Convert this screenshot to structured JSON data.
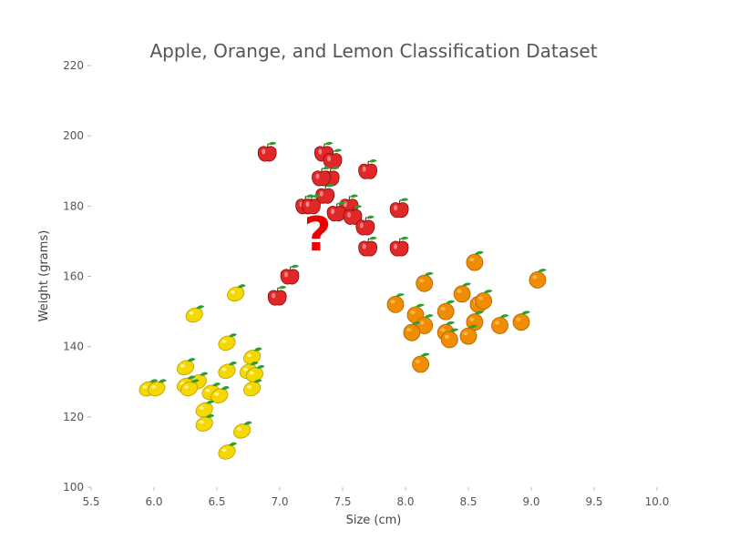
{
  "chart_data": {
    "type": "scatter",
    "title": "Apple, Orange, and Lemon Classification Dataset",
    "xlabel": "Size (cm)",
    "ylabel": "Weight (grams)",
    "xlim": [
      5.5,
      10.0
    ],
    "ylim": [
      100,
      220
    ],
    "xticks": [
      "5.5",
      "6.0",
      "6.5",
      "7.0",
      "7.5",
      "8.0",
      "8.5",
      "9.0",
      "9.5",
      "10.0"
    ],
    "yticks": [
      "100",
      "120",
      "140",
      "160",
      "180",
      "200",
      "220"
    ],
    "grid": false,
    "legend": "none",
    "annotation": "?",
    "annotation_point": {
      "x": 7.3,
      "y": 172
    },
    "colors": {
      "apple": "#e02828",
      "orange": "#f08c00",
      "lemon": "#f5d800",
      "leaf": "#2e9e2e",
      "question": "#ee0000"
    },
    "series": [
      {
        "marker": "apple",
        "points": [
          [
            6.9,
            195
          ],
          [
            7.35,
            195
          ],
          [
            7.42,
            193
          ],
          [
            7.4,
            188
          ],
          [
            7.33,
            188
          ],
          [
            7.7,
            190
          ],
          [
            7.36,
            183
          ],
          [
            7.2,
            180
          ],
          [
            7.25,
            180
          ],
          [
            7.55,
            180
          ],
          [
            7.45,
            178
          ],
          [
            7.58,
            177
          ],
          [
            7.68,
            174
          ],
          [
            7.95,
            179
          ],
          [
            7.7,
            168
          ],
          [
            7.95,
            168
          ],
          [
            7.08,
            160
          ],
          [
            6.98,
            154
          ]
        ]
      },
      {
        "marker": "orange",
        "points": [
          [
            7.92,
            152
          ],
          [
            8.15,
            158
          ],
          [
            8.55,
            164
          ],
          [
            9.05,
            159
          ],
          [
            8.08,
            149
          ],
          [
            8.15,
            146
          ],
          [
            8.45,
            155
          ],
          [
            8.32,
            150
          ],
          [
            8.58,
            152
          ],
          [
            8.62,
            153
          ],
          [
            8.55,
            147
          ],
          [
            8.05,
            144
          ],
          [
            8.32,
            144
          ],
          [
            8.35,
            142
          ],
          [
            8.5,
            143
          ],
          [
            8.75,
            146
          ],
          [
            8.92,
            147
          ],
          [
            8.12,
            135
          ]
        ]
      },
      {
        "marker": "lemon",
        "points": [
          [
            6.65,
            155
          ],
          [
            6.32,
            149
          ],
          [
            6.58,
            141
          ],
          [
            6.78,
            137
          ],
          [
            6.25,
            134
          ],
          [
            6.58,
            133
          ],
          [
            6.75,
            133
          ],
          [
            6.8,
            132
          ],
          [
            6.35,
            130
          ],
          [
            6.25,
            129
          ],
          [
            6.28,
            128
          ],
          [
            5.95,
            128
          ],
          [
            6.02,
            128
          ],
          [
            6.45,
            127
          ],
          [
            6.52,
            126
          ],
          [
            6.78,
            128
          ],
          [
            6.4,
            122
          ],
          [
            6.4,
            118
          ],
          [
            6.7,
            116
          ],
          [
            6.58,
            110
          ]
        ]
      }
    ]
  }
}
